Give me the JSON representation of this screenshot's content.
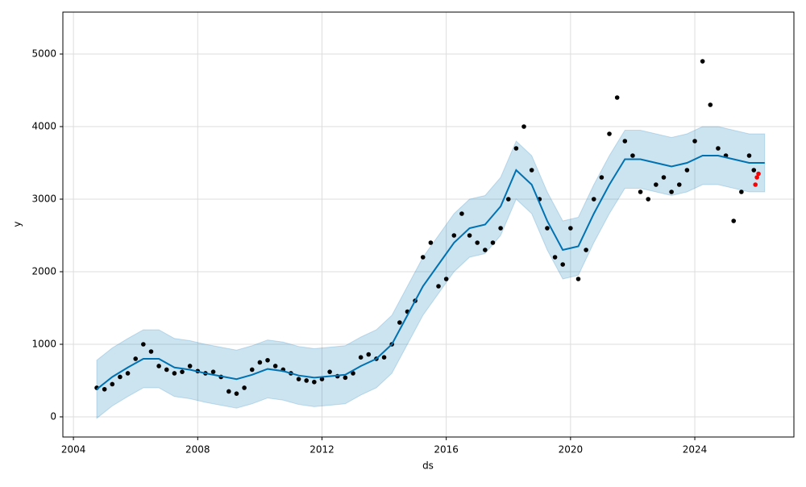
{
  "chart_data": {
    "type": "forecast",
    "xlabel": "ds",
    "ylabel": "y",
    "xlim": [
      2003.66,
      2027.19
    ],
    "xticks": [
      2004,
      2008,
      2012,
      2016,
      2020,
      2024
    ],
    "ylim": [
      -278,
      5578
    ],
    "yticks": [
      0,
      1000,
      2000,
      3000,
      4000,
      5000
    ],
    "grid": true,
    "observed": {
      "color": "#000000",
      "x": [
        2004.75,
        2005.0,
        2005.25,
        2005.5,
        2005.75,
        2006.0,
        2006.25,
        2006.5,
        2006.75,
        2007.0,
        2007.25,
        2007.5,
        2007.75,
        2008.0,
        2008.25,
        2008.5,
        2008.75,
        2009.0,
        2009.25,
        2009.5,
        2009.75,
        2010.0,
        2010.25,
        2010.5,
        2010.75,
        2011.0,
        2011.25,
        2011.5,
        2011.75,
        2012.0,
        2012.25,
        2012.5,
        2012.75,
        2013.0,
        2013.25,
        2013.5,
        2013.75,
        2014.0,
        2014.25,
        2014.5,
        2014.75,
        2015.0,
        2015.25,
        2015.5,
        2015.75,
        2016.0,
        2016.25,
        2016.5,
        2016.75,
        2017.0,
        2017.25,
        2017.5,
        2017.75,
        2018.0,
        2018.25,
        2018.5,
        2018.75,
        2019.0,
        2019.25,
        2019.5,
        2019.75,
        2020.0,
        2020.25,
        2020.5,
        2020.75,
        2021.0,
        2021.25,
        2021.5,
        2021.75,
        2022.0,
        2022.25,
        2022.5,
        2022.75,
        2023.0,
        2023.25,
        2023.5,
        2023.75,
        2024.0,
        2024.25,
        2024.5,
        2024.75,
        2025.0,
        2025.25,
        2025.5,
        2025.75,
        2025.9
      ],
      "values": [
        400,
        380,
        450,
        550,
        600,
        800,
        1000,
        900,
        700,
        650,
        600,
        620,
        700,
        630,
        600,
        620,
        550,
        350,
        320,
        400,
        650,
        750,
        780,
        700,
        650,
        600,
        520,
        500,
        480,
        520,
        620,
        560,
        540,
        600,
        820,
        860,
        800,
        820,
        1000,
        1300,
        1450,
        1600,
        2200,
        2400,
        1800,
        1900,
        2500,
        2800,
        2500,
        2400,
        2300,
        2400,
        2600,
        3000,
        3700,
        4000,
        3400,
        3000,
        2600,
        2200,
        2100,
        2600,
        1900,
        2300,
        3000,
        3300,
        3900,
        4400,
        3800,
        3600,
        3100,
        3000,
        3200,
        3300,
        3100,
        3200,
        3400,
        3800,
        4900,
        4300,
        3700,
        3600,
        2700,
        3100,
        3600,
        3400
      ]
    },
    "recent": {
      "color": "#ff0000",
      "x": [
        2025.95,
        2026.0,
        2026.05
      ],
      "values": [
        3200,
        3300,
        3350
      ]
    },
    "forecast": {
      "color": "#0072b2",
      "band_color": "#0072b2",
      "x": [
        2004.75,
        2005.25,
        2005.75,
        2006.25,
        2006.75,
        2007.25,
        2007.75,
        2008.25,
        2008.75,
        2009.25,
        2009.75,
        2010.25,
        2010.75,
        2011.25,
        2011.75,
        2012.25,
        2012.75,
        2013.25,
        2013.75,
        2014.25,
        2014.75,
        2015.25,
        2015.75,
        2016.25,
        2016.75,
        2017.25,
        2017.75,
        2018.25,
        2018.75,
        2019.25,
        2019.75,
        2020.25,
        2020.75,
        2021.25,
        2021.75,
        2022.25,
        2022.75,
        2023.25,
        2023.75,
        2024.25,
        2024.75,
        2025.25,
        2025.75,
        2026.25
      ],
      "values": [
        380,
        550,
        680,
        800,
        800,
        680,
        650,
        600,
        560,
        520,
        580,
        660,
        630,
        570,
        540,
        560,
        580,
        700,
        800,
        1000,
        1400,
        1800,
        2100,
        2400,
        2600,
        2650,
        2900,
        3400,
        3200,
        2700,
        2300,
        2350,
        2800,
        3200,
        3550,
        3550,
        3500,
        3450,
        3500,
        3600,
        3600,
        3550,
        3500,
        3500
      ],
      "upper": [
        780,
        950,
        1080,
        1200,
        1200,
        1080,
        1050,
        1000,
        960,
        920,
        980,
        1060,
        1030,
        970,
        940,
        960,
        980,
        1100,
        1200,
        1400,
        1800,
        2200,
        2500,
        2800,
        3000,
        3050,
        3300,
        3800,
        3600,
        3100,
        2700,
        2750,
        3200,
        3600,
        3950,
        3950,
        3900,
        3850,
        3900,
        4000,
        4000,
        3950,
        3900,
        3900
      ],
      "lower": [
        -20,
        150,
        280,
        400,
        400,
        280,
        250,
        200,
        160,
        120,
        180,
        260,
        230,
        170,
        140,
        160,
        180,
        300,
        400,
        600,
        1000,
        1400,
        1700,
        2000,
        2200,
        2250,
        2500,
        3000,
        2800,
        2300,
        1900,
        1950,
        2400,
        2800,
        3150,
        3150,
        3100,
        3050,
        3100,
        3200,
        3200,
        3150,
        3100,
        3100
      ]
    }
  }
}
